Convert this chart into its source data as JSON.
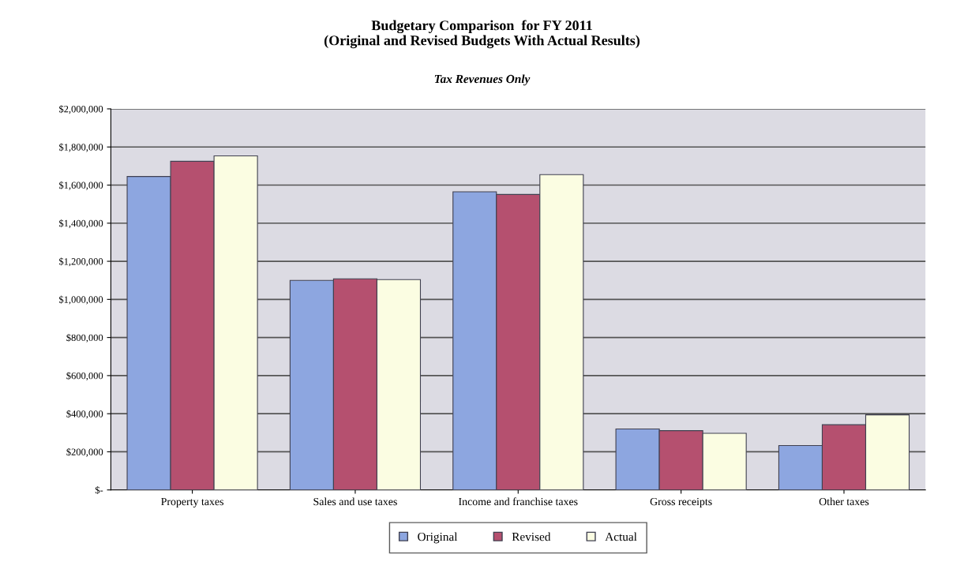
{
  "chart_data": {
    "type": "bar",
    "title": "Budgetary Comparison  for FY 2011\n(Original and Revised Budgets With Actual Results)",
    "subtitle": "Tax Revenues Only",
    "categories": [
      "Property taxes",
      "Sales and use taxes",
      "Income and franchise taxes",
      "Gross receipts",
      "Other taxes"
    ],
    "series": [
      {
        "name": "Original",
        "color": "#8da6e0",
        "values": [
          1645000,
          1100000,
          1565000,
          320000,
          233000
        ]
      },
      {
        "name": "Revised",
        "color": "#b5506f",
        "values": [
          1725000,
          1108000,
          1551000,
          311000,
          342000
        ]
      },
      {
        "name": "Actual",
        "color": "#fbfde2",
        "values": [
          1753000,
          1104000,
          1655000,
          297000,
          394000
        ]
      }
    ],
    "ylim": [
      0,
      2000000
    ],
    "yticks": [
      {
        "value": 0,
        "label": "$-"
      },
      {
        "value": 200000,
        "label": "$200,000"
      },
      {
        "value": 400000,
        "label": "$400,000"
      },
      {
        "value": 600000,
        "label": "$600,000"
      },
      {
        "value": 800000,
        "label": "$800,000"
      },
      {
        "value": 1000000,
        "label": "$1,000,000"
      },
      {
        "value": 1200000,
        "label": "$1,200,000"
      },
      {
        "value": 1400000,
        "label": "$1,400,000"
      },
      {
        "value": 1600000,
        "label": "$1,600,000"
      },
      {
        "value": 1800000,
        "label": "$1,800,000"
      },
      {
        "value": 2000000,
        "label": "$2,000,000"
      }
    ],
    "grid": "y",
    "legend": "bottom"
  }
}
